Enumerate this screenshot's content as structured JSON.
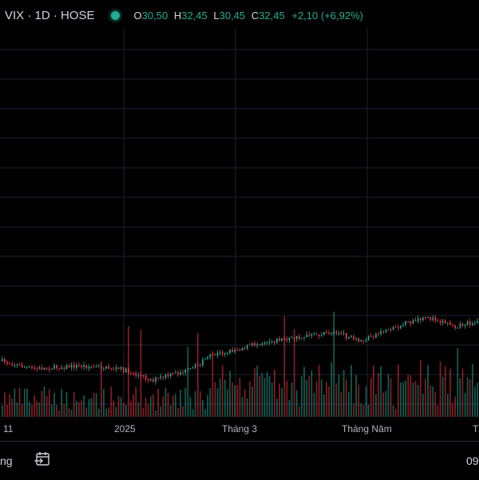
{
  "legend": {
    "symbol": "VIX · 1D · HOSE",
    "open_key": "O",
    "open": "30,50",
    "high_key": "H",
    "high": "32,45",
    "low_key": "L",
    "low": "30,45",
    "close_key": "C",
    "close": "32,45",
    "change": "+2,10 (+6,92%)",
    "status_color": "#22ab94"
  },
  "xaxis": {
    "ticks": [
      "11",
      "2025",
      "Tháng 3",
      "Tháng Năm",
      "T"
    ]
  },
  "bottom": {
    "left_text": "ng",
    "right_text": "09",
    "goto_icon": "calendar-arrow-icon"
  },
  "colors": {
    "up": "#22ab94",
    "down": "#f23645",
    "grid": "#1e222d"
  }
}
